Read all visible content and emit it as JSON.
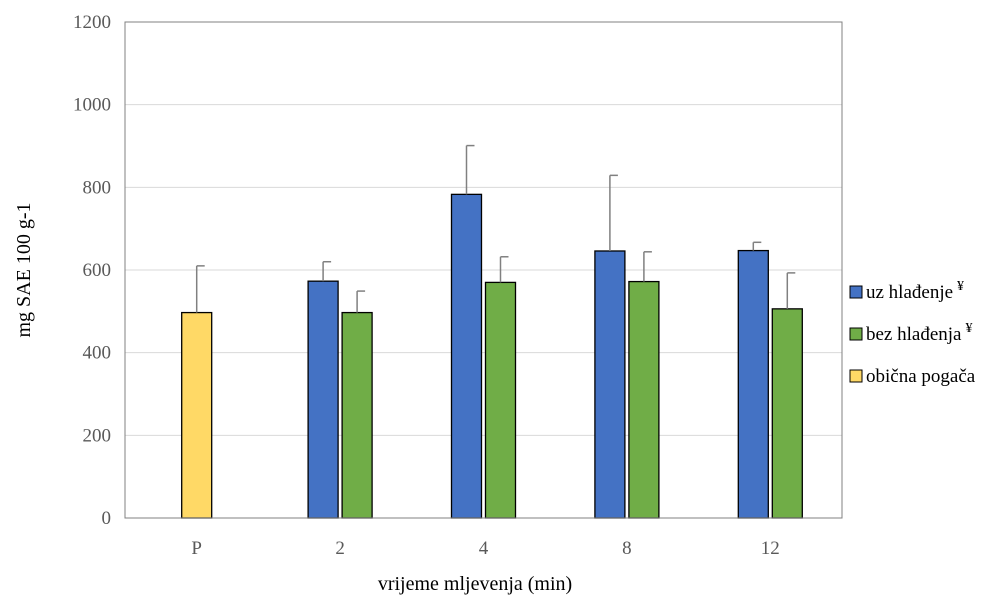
{
  "chart_data": {
    "type": "bar",
    "categories": [
      "P",
      "2",
      "4",
      "8",
      "12"
    ],
    "xlabel": "vrijeme mljevenja (min)",
    "ylabel": "mg SAE 100 g-1",
    "ylim": [
      0,
      1200
    ],
    "yticks": [
      0,
      200,
      400,
      600,
      800,
      1000,
      1200
    ],
    "grid": true,
    "legend_position": "right",
    "series": [
      {
        "name": "uz hlađenje",
        "marker": "¥",
        "color": "#4472c4",
        "values": [
          null,
          573,
          783,
          646,
          647
        ],
        "errors": [
          null,
          47,
          118,
          183,
          20
        ]
      },
      {
        "name": "bez hlađenja",
        "marker": "¥",
        "color": "#70ad47",
        "values": [
          null,
          497,
          570,
          572,
          506
        ],
        "errors": [
          null,
          52,
          62,
          72,
          87
        ]
      },
      {
        "name": "obična pogača",
        "marker": "",
        "color": "#ffd966",
        "values": [
          497,
          null,
          null,
          null,
          null
        ],
        "errors": [
          113,
          null,
          null,
          null,
          null
        ]
      }
    ]
  }
}
